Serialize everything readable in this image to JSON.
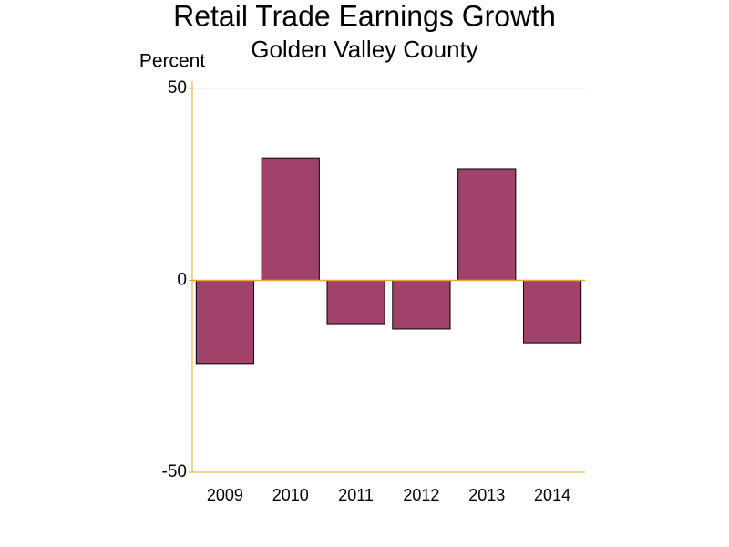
{
  "chart_data": {
    "type": "bar",
    "title": "Retail Trade Earnings Growth",
    "subtitle": "Golden Valley County",
    "y_label": "Percent",
    "categories": [
      "2009",
      "2010",
      "2011",
      "2012",
      "2013",
      "2014"
    ],
    "values": [
      -21.7,
      31.9,
      -11.3,
      -12.7,
      29.1,
      -16.3
    ],
    "color": "#a0426a",
    "ylim": [
      -50,
      50
    ],
    "yticks": [
      -50,
      0,
      50
    ],
    "grid": true
  }
}
